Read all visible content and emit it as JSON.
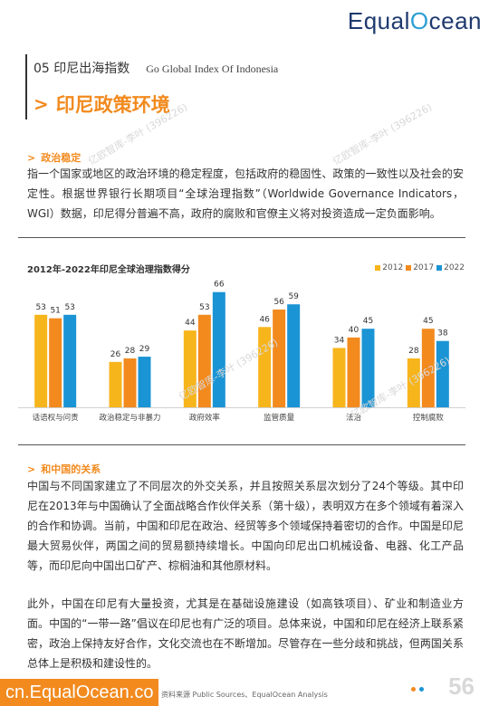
{
  "brand": {
    "pre": "Equal",
    "o": "O",
    "post": "cean"
  },
  "section": {
    "title": "05 印尼出海指数",
    "subtitle": "Go Global Index Of Indonesia"
  },
  "page_heading": "印尼政策环境",
  "politics": {
    "heading": "政治稳定",
    "paragraph": "指一个国家或地区的政治环境的稳定程度，包括政府的稳固性、政策的一致性以及社会的安 定性。根据世界银行长期项目“全球治理指数”（Worldwide Governance Indicators，WGI）数据，印尼得分普遍不高，政府的腐败和官僚主义将对投资造成一定负面影响。"
  },
  "chart_data": {
    "type": "bar",
    "title": "2012年-2022年印尼全球治理指数得分",
    "categories": [
      "话语权与问责",
      "政治稳定与非暴力",
      "政府效率",
      "监管质量",
      "法治",
      "控制腐败"
    ],
    "series": [
      {
        "name": "2012",
        "color": "#f7b51c",
        "values": [
          53,
          26,
          44,
          46,
          34,
          28
        ]
      },
      {
        "name": "2017",
        "color": "#f28a1e",
        "values": [
          51,
          28,
          53,
          56,
          40,
          45
        ]
      },
      {
        "name": "2022",
        "color": "#1a94d4",
        "values": [
          53,
          29,
          66,
          59,
          45,
          38
        ]
      }
    ],
    "ylim": [
      0,
      70
    ],
    "legend_position": "top-right",
    "grid": false
  },
  "china": {
    "heading": "和中国的关系",
    "paragraph1": "中国与不同国家建立了不同层次的外交关系，并且按照关系层次划分了24个等级。其中印尼在2013年与中国确认了全面战略合作伙伴关系（第十级），表明双方在多个领域有着深入的合作和协调。当前，中国和印尼在政治、经贸等多个领域保持着密切的合作。中国是印尼最大贸易伙伴，两国之间的贸易额持续增长。中国向印尼出口机械设备、电器、化工产品等，而印尼向中国出口矿产、棕榈油和其他原材料。",
    "paragraph2": "此外，中国在印尼有大量投资，尤其是在基础设施建设（如高铁项目）、矿业和制造业方面。中国的“一带一路”倡议在印尼也有广泛的项目。总体来说，中国和印尼在经济上联系紧密，政治上保持友好合作，文化交流也在不断增加。尽管存在一些分歧和挑战，但两国关系总体上是积极和建设性的。"
  },
  "footer": {
    "url": "cn.EqualOcean.co",
    "source": "资料来源 Public Sources、EqualOcean Analysis",
    "page_number": "56"
  },
  "watermark": "亿欧智库-李叶 (396226)",
  "colors": {
    "accent": "#f28a1e",
    "dot1": "#f28a1e",
    "dot2": "#1a94d4"
  }
}
